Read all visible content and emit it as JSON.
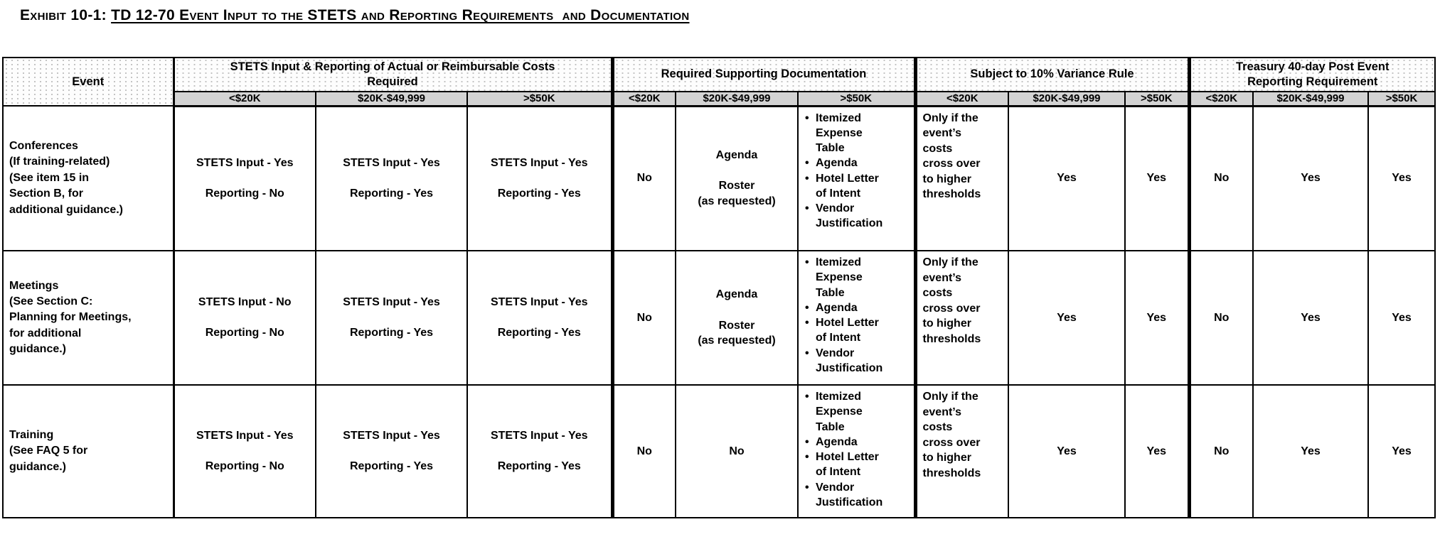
{
  "title": {
    "prefix": "Exhibit 10-1: ",
    "underlined": "TD 12-70 Event Input to the STETS and Reporting Requirements  and Documentation"
  },
  "table": {
    "event_header": "Event",
    "groups": [
      {
        "label": "STETS Input & Reporting of Actual or Reimbursable Costs\nRequired",
        "subcols": [
          "<$20K",
          "$20K-$49,999",
          ">$50K"
        ]
      },
      {
        "label": "Required Supporting Documentation",
        "subcols": [
          "<$20K",
          "$20K-$49,999",
          ">$50K"
        ]
      },
      {
        "label": "Subject to 10% Variance Rule",
        "subcols": [
          "<$20K",
          "$20K-$49,999",
          ">$50K"
        ]
      },
      {
        "label": "Treasury 40-day Post Event\nReporting Requirement",
        "subcols": [
          "<$20K",
          "$20K-$49,999",
          ">$50K"
        ]
      }
    ],
    "rows": [
      {
        "event": "Conferences\n(If training-related)\n(See item 15 in\nSection B, for\nadditional guidance.)",
        "stets": [
          "STETS Input - Yes\n\nReporting - No",
          "STETS Input - Yes\n\nReporting - Yes",
          "STETS Input - Yes\n\nReporting - Yes"
        ],
        "doc_under20k": "No",
        "doc_mid": "Agenda\n\nRoster\n(as requested)",
        "doc_over50k_items": [
          "Itemized\nExpense\nTable",
          "Agenda",
          "Hotel Letter\nof Intent",
          "Vendor\nJustification"
        ],
        "variance_under20k": "Only if the\nevent’s\ncosts\ncross over\nto higher\nthresholds",
        "variance_mid": "Yes",
        "variance_over50k": "Yes",
        "treasury_under20k": "No",
        "treasury_mid": "Yes",
        "treasury_over50k": "Yes"
      },
      {
        "event": "Meetings\n(See Section C:\nPlanning for Meetings,\nfor additional\nguidance.)",
        "stets": [
          "STETS Input - No\n\nReporting - No",
          "STETS Input - Yes\n\nReporting - Yes",
          "STETS Input - Yes\n\nReporting - Yes"
        ],
        "doc_under20k": "No",
        "doc_mid": "Agenda\n\nRoster\n(as requested)",
        "doc_over50k_items": [
          "Itemized\nExpense\nTable",
          "Agenda",
          "Hotel Letter\nof Intent",
          "Vendor\nJustification"
        ],
        "variance_under20k": "Only if the\nevent’s\ncosts\ncross over\nto higher\nthresholds",
        "variance_mid": "Yes",
        "variance_over50k": "Yes",
        "treasury_under20k": "No",
        "treasury_mid": "Yes",
        "treasury_over50k": "Yes"
      },
      {
        "event": "Training\n(See FAQ 5 for\nguidance.)",
        "stets": [
          "STETS Input - Yes\n\nReporting - No",
          "STETS Input - Yes\n\nReporting - Yes",
          "STETS Input - Yes\n\nReporting - Yes"
        ],
        "doc_under20k": "No",
        "doc_mid": "No",
        "doc_over50k_items": [
          "Itemized\nExpense\nTable",
          "Agenda",
          "Hotel Letter\nof Intent",
          "Vendor\nJustification"
        ],
        "variance_under20k": "Only if the\nevent’s\ncosts\ncross over\nto higher\nthresholds",
        "variance_mid": "Yes",
        "variance_over50k": "Yes",
        "treasury_under20k": "No",
        "treasury_mid": "Yes",
        "treasury_over50k": "Yes"
      }
    ]
  },
  "colors": {
    "border": "#000000",
    "subheader_bg": "#d3d3d3",
    "header_dots": "#c0c0c0"
  }
}
